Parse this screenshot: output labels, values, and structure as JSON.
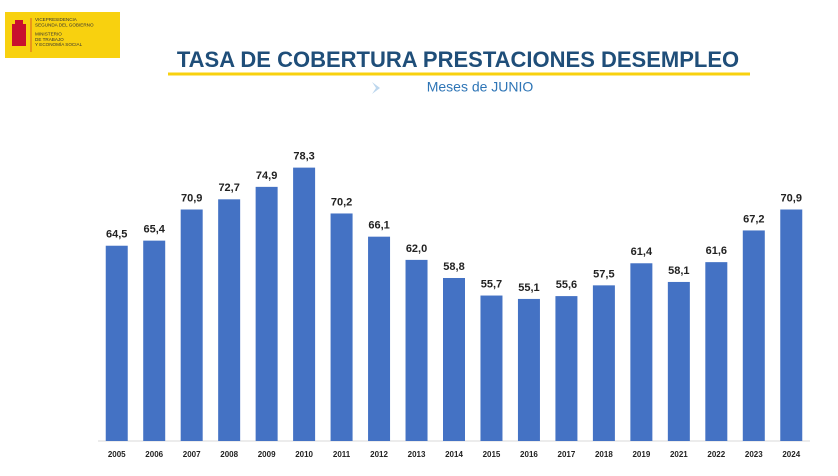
{
  "logo": {
    "lines": [
      "VICEPRESIDENCIA",
      "SEGUNDA DEL GOBIERNO",
      "MINISTERIO",
      "DE TRABAJO",
      "Y ECONOMÍA SOCIAL"
    ]
  },
  "chart_data": {
    "type": "bar",
    "title": "TASA DE COBERTURA PRESTACIONES DESEMPLEO",
    "subtitle": "Meses de JUNIO",
    "categories": [
      "2005",
      "2006",
      "2007",
      "2008",
      "2009",
      "2010",
      "2011",
      "2012",
      "2013",
      "2014",
      "2015",
      "2016",
      "2017",
      "2018",
      "2019",
      "2021",
      "2022",
      "2023",
      "2024"
    ],
    "values": [
      64.5,
      65.4,
      70.9,
      72.7,
      74.9,
      78.3,
      70.2,
      66.1,
      62.0,
      58.8,
      55.7,
      55.1,
      55.6,
      57.5,
      61.4,
      58.1,
      61.6,
      67.2,
      70.9
    ],
    "value_labels": [
      "64,5",
      "65,4",
      "70,9",
      "72,7",
      "74,9",
      "78,3",
      "70,2",
      "66,1",
      "62,0",
      "58,8",
      "55,7",
      "55,1",
      "55,6",
      "57,5",
      "61,4",
      "58,1",
      "61,6",
      "67,2",
      "70,9"
    ],
    "color": "#4472c4",
    "ylim": [
      30,
      80
    ]
  }
}
